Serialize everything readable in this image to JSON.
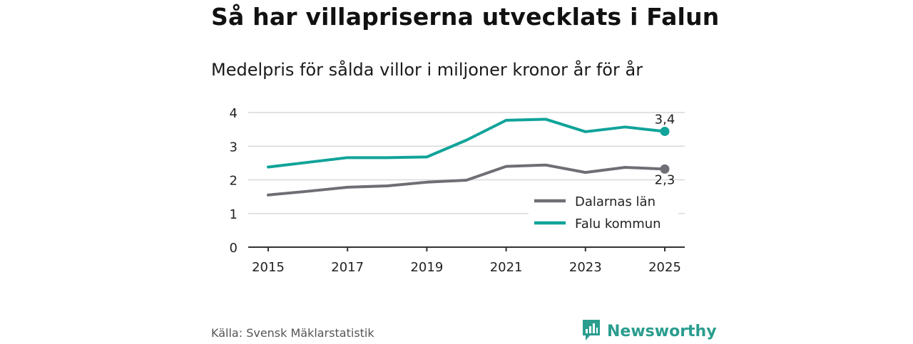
{
  "chart_data": {
    "type": "line",
    "title": "Så har villapriserna utvecklats i Falun",
    "subtitle": "Medelpris för sålda villor i miljoner kronor år för år",
    "x": [
      2015,
      2016,
      2017,
      2018,
      2019,
      2020,
      2021,
      2022,
      2023,
      2024,
      2025
    ],
    "xticks": [
      "2015",
      "2017",
      "2019",
      "2021",
      "2023",
      "2025"
    ],
    "yticks": [
      "0",
      "1",
      "2",
      "3",
      "4"
    ],
    "xlim": [
      2015,
      2025
    ],
    "ylim": [
      0,
      4
    ],
    "grid": true,
    "legend_position": "bottom-right",
    "series": [
      {
        "name": "Dalarnas län",
        "color": "#6f6e75",
        "values": [
          1.55,
          1.66,
          1.78,
          1.82,
          1.93,
          1.99,
          2.4,
          2.44,
          2.22,
          2.37,
          2.32
        ],
        "end_label": "2,3"
      },
      {
        "name": "Falu kommun",
        "color": "#0fa39a",
        "values": [
          2.38,
          2.52,
          2.66,
          2.66,
          2.68,
          3.18,
          3.77,
          3.8,
          3.43,
          3.57,
          3.44
        ],
        "end_label": "3,4"
      }
    ]
  },
  "footer": {
    "source": "Källa: Svensk Mäklarstatistik",
    "brand": "Newsworthy",
    "brand_color": "#2a9d8f",
    "brand_icon": "bar-chart-bubble-icon"
  }
}
